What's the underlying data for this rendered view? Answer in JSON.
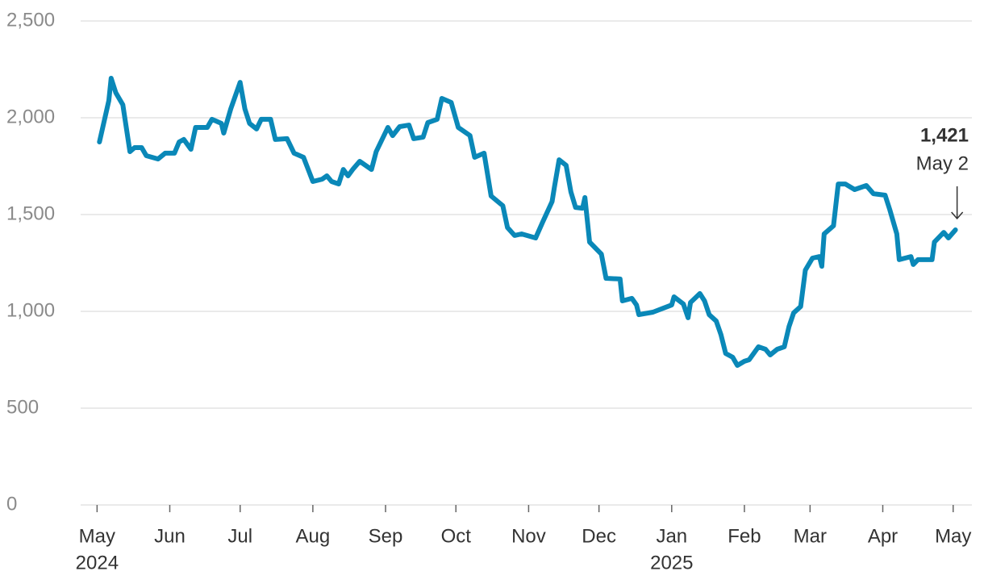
{
  "chart_data": {
    "type": "line",
    "x": [
      "2024-05-02",
      "2024-05-06",
      "2024-05-07",
      "2024-05-09",
      "2024-05-12",
      "2024-05-15",
      "2024-05-17",
      "2024-05-20",
      "2024-05-22",
      "2024-05-27",
      "2024-05-30",
      "2024-06-03",
      "2024-06-05",
      "2024-06-07",
      "2024-06-10",
      "2024-06-12",
      "2024-06-17",
      "2024-06-19",
      "2024-06-23",
      "2024-06-24",
      "2024-06-27",
      "2024-07-01",
      "2024-07-03",
      "2024-07-05",
      "2024-07-08",
      "2024-07-10",
      "2024-07-14",
      "2024-07-16",
      "2024-07-21",
      "2024-07-24",
      "2024-07-28",
      "2024-08-01",
      "2024-08-05",
      "2024-08-07",
      "2024-08-09",
      "2024-08-12",
      "2024-08-14",
      "2024-08-16",
      "2024-08-18",
      "2024-08-21",
      "2024-08-26",
      "2024-08-28",
      "2024-09-02",
      "2024-09-04",
      "2024-09-07",
      "2024-09-11",
      "2024-09-13",
      "2024-09-17",
      "2024-09-19",
      "2024-09-23",
      "2024-09-25",
      "2024-09-29",
      "2024-10-02",
      "2024-10-07",
      "2024-10-09",
      "2024-10-13",
      "2024-10-16",
      "2024-10-21",
      "2024-10-23",
      "2024-10-26",
      "2024-10-29",
      "2024-11-04",
      "2024-11-07",
      "2024-11-11",
      "2024-11-12",
      "2024-11-14",
      "2024-11-17",
      "2024-11-19",
      "2024-11-21",
      "2024-11-24",
      "2024-11-25",
      "2024-11-27",
      "2024-12-02",
      "2024-12-04",
      "2024-12-10",
      "2024-12-11",
      "2024-12-15",
      "2024-12-17",
      "2024-12-18",
      "2024-12-24",
      "2025-01-01",
      "2025-01-02",
      "2025-01-06",
      "2025-01-08",
      "2025-01-09",
      "2025-01-13",
      "2025-01-15",
      "2025-01-17",
      "2025-01-20",
      "2025-01-22",
      "2025-01-24",
      "2025-01-27",
      "2025-01-29",
      "2025-02-01",
      "2025-02-03",
      "2025-02-07",
      "2025-02-10",
      "2025-02-12",
      "2025-02-15",
      "2025-02-18",
      "2025-02-20",
      "2025-02-22",
      "2025-02-25",
      "2025-02-27",
      "2025-03-02",
      "2025-03-05",
      "2025-03-06",
      "2025-03-07",
      "2025-03-11",
      "2025-03-13",
      "2025-03-16",
      "2025-03-20",
      "2025-03-25",
      "2025-03-28",
      "2025-04-02",
      "2025-04-04",
      "2025-04-07",
      "2025-04-08",
      "2025-04-13",
      "2025-04-14",
      "2025-04-16",
      "2025-04-22",
      "2025-04-23",
      "2025-04-27",
      "2025-04-29",
      "2025-05-02"
    ],
    "series": [
      {
        "color": "#0a88b8",
        "values": [
          1875,
          2088,
          2204,
          2129,
          2067,
          1825,
          1846,
          1846,
          1804,
          1787,
          1817,
          1817,
          1875,
          1888,
          1837,
          1950,
          1950,
          1992,
          1971,
          1921,
          2046,
          2183,
          2046,
          1971,
          1942,
          1992,
          1992,
          1888,
          1892,
          1817,
          1796,
          1671,
          1683,
          1700,
          1671,
          1658,
          1733,
          1700,
          1733,
          1775,
          1733,
          1825,
          1950,
          1908,
          1954,
          1962,
          1892,
          1900,
          1975,
          1992,
          2100,
          2079,
          1950,
          1908,
          1796,
          1817,
          1596,
          1546,
          1433,
          1392,
          1400,
          1379,
          1462,
          1567,
          1642,
          1783,
          1754,
          1617,
          1537,
          1533,
          1588,
          1358,
          1296,
          1171,
          1167,
          1054,
          1067,
          1033,
          983,
          996,
          1033,
          1075,
          1038,
          967,
          1046,
          1092,
          1054,
          983,
          950,
          879,
          783,
          763,
          721,
          742,
          750,
          817,
          804,
          775,
          804,
          817,
          921,
          992,
          1025,
          1213,
          1275,
          1283,
          1233,
          1400,
          1442,
          1658,
          1658,
          1629,
          1650,
          1608,
          1600,
          1525,
          1400,
          1267,
          1283,
          1242,
          1267,
          1267,
          1358,
          1408,
          1379,
          1421
        ]
      }
    ],
    "xlim": [
      "2024-04-24",
      "2025-05-09"
    ],
    "xticks": [
      {
        "value": "2024-05-01",
        "label": "May"
      },
      {
        "value": "2024-06-01",
        "label": "Jun"
      },
      {
        "value": "2024-07-01",
        "label": "Jul"
      },
      {
        "value": "2024-08-01",
        "label": "Aug"
      },
      {
        "value": "2024-09-01",
        "label": "Sep"
      },
      {
        "value": "2024-10-01",
        "label": "Oct"
      },
      {
        "value": "2024-11-01",
        "label": "Nov"
      },
      {
        "value": "2024-12-01",
        "label": "Dec"
      },
      {
        "value": "2025-01-01",
        "label": "Jan"
      },
      {
        "value": "2025-02-01",
        "label": "Feb"
      },
      {
        "value": "2025-03-01",
        "label": "Mar"
      },
      {
        "value": "2025-04-01",
        "label": "Apr"
      },
      {
        "value": "2025-05-01",
        "label": "May"
      }
    ],
    "year_labels": [
      {
        "value": "2024-05-01",
        "label": "2024"
      },
      {
        "value": "2025-01-01",
        "label": "2025"
      }
    ],
    "ylim": [
      0,
      2500
    ],
    "yticks": [
      0,
      500,
      {
        "value": 1000,
        "label": "1,000"
      },
      {
        "value": 1500,
        "label": "1,500"
      },
      {
        "value": 2000,
        "label": "2,000"
      },
      {
        "value": 2500,
        "label": "2,500"
      }
    ],
    "grid": true,
    "annotation": {
      "value_label": "1,421",
      "date_label": "May 2"
    }
  }
}
